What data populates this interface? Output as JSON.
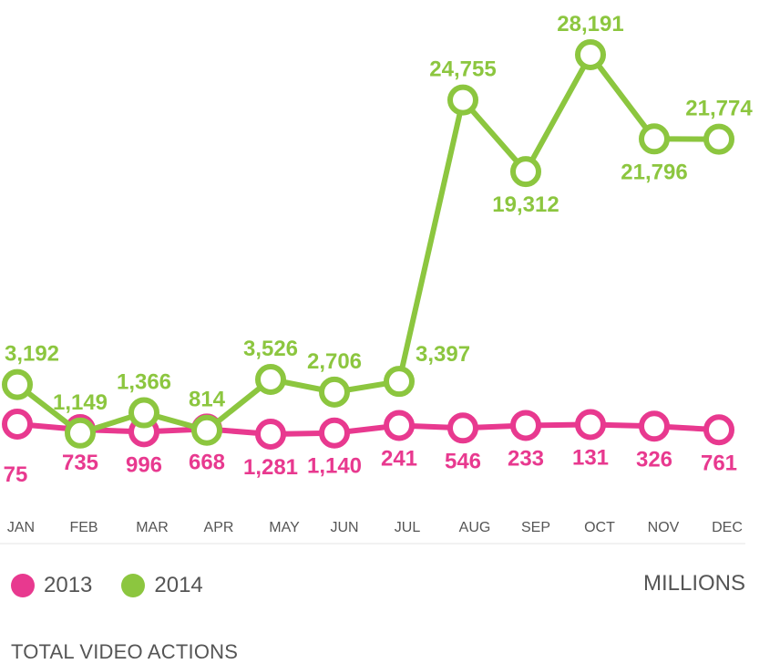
{
  "chart_data": {
    "type": "line",
    "title": "TOTAL VIDEO ACTIONS",
    "units": "MILLIONS",
    "categories": [
      "JAN",
      "FEB",
      "MAR",
      "APR",
      "MAY",
      "JUN",
      "JUL",
      "AUG",
      "SEP",
      "OCT",
      "NOV",
      "DEC"
    ],
    "series": [
      {
        "name": "2013",
        "color": "#e8398f",
        "values": [
          75,
          735,
          996,
          668,
          1281,
          1140,
          241,
          546,
          233,
          131,
          326,
          761
        ],
        "labels": [
          "75",
          "735",
          "996",
          "668",
          "1,281",
          "1,140",
          "241",
          "546",
          "233",
          "131",
          "326",
          "761"
        ]
      },
      {
        "name": "2014",
        "color": "#8cc63f",
        "values": [
          3192,
          1149,
          1366,
          814,
          3526,
          2706,
          3397,
          24755,
          19312,
          28191,
          21796,
          21774
        ],
        "labels": [
          "3,192",
          "1,149",
          "1,366",
          "814",
          "3,526",
          "2,706",
          "3,397",
          "24,755",
          "19,312",
          "28,191",
          "21,796",
          "21,774"
        ]
      }
    ],
    "grid": false,
    "legend_position": "bottom-left"
  }
}
